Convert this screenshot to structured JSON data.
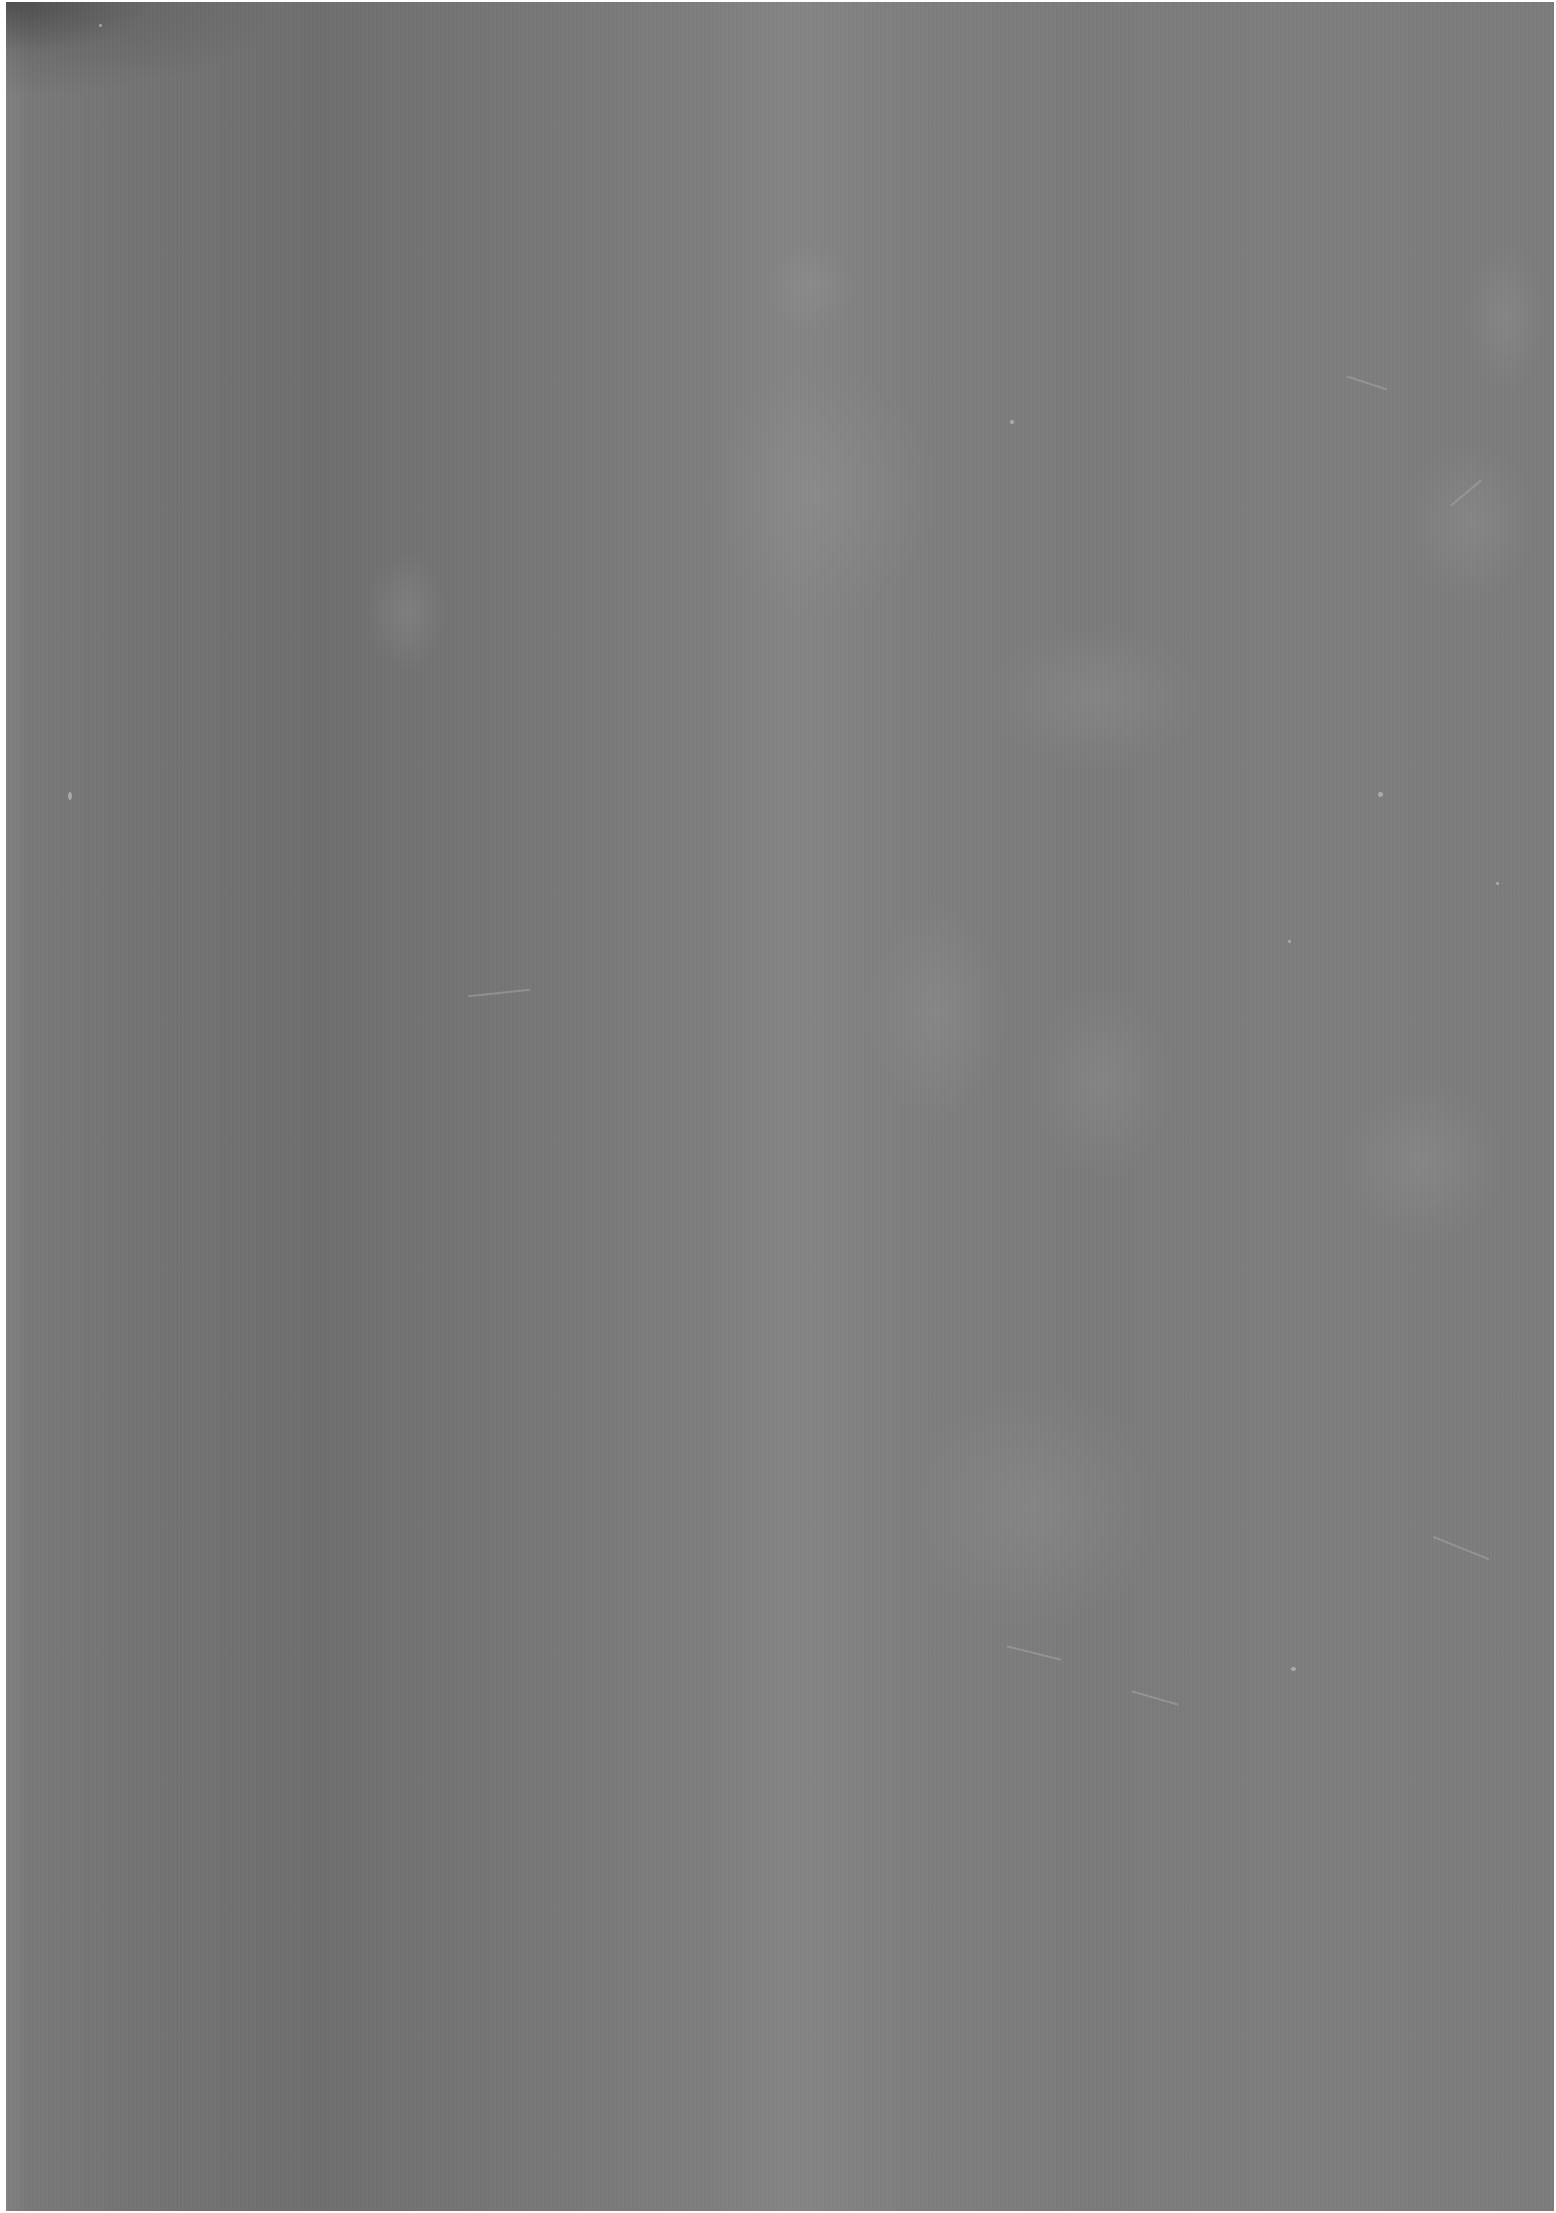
{
  "page": {
    "background_color": "#ffffff",
    "paper_tone": "#7a7a7a",
    "content_text": ""
  }
}
